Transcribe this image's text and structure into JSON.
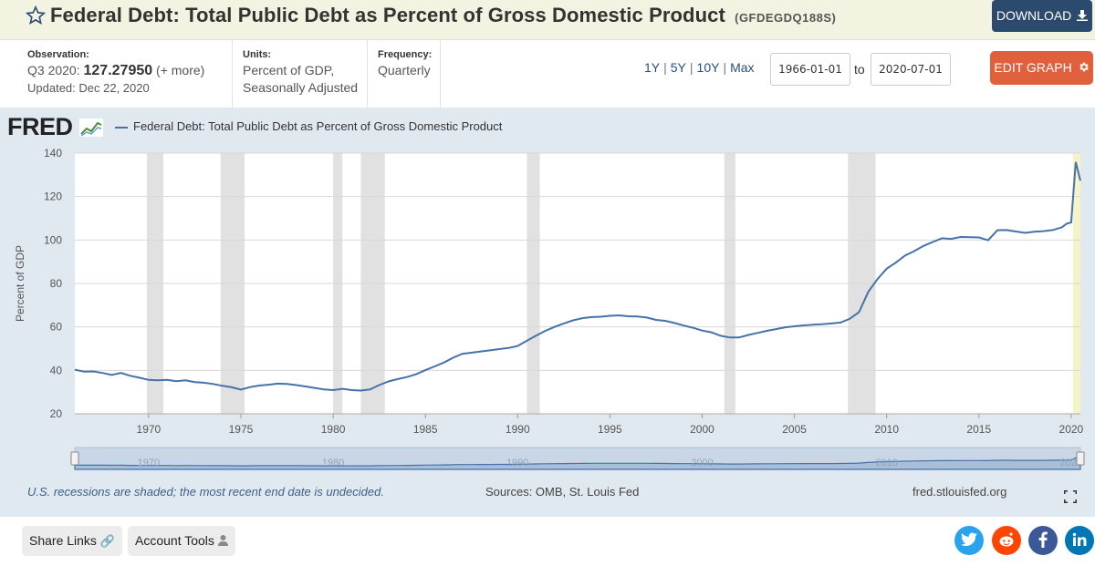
{
  "header": {
    "title": "Federal Debt: Total Public Debt as Percent of Gross Domestic Product",
    "series_id": "(GFDEGDQ188S)",
    "download_label": "DOWNLOAD"
  },
  "meta": {
    "observation_label": "Observation:",
    "observation_period": "Q3 2020:",
    "observation_value": "127.27950",
    "more_label": "(+ more)",
    "updated": "Updated: Dec 22, 2020",
    "units_label": "Units:",
    "units_line1": "Percent of GDP,",
    "units_line2": "Seasonally Adjusted",
    "frequency_label": "Frequency:",
    "frequency_value": "Quarterly"
  },
  "controls": {
    "range_1y": "1Y",
    "range_5y": "5Y",
    "range_10y": "10Y",
    "range_max": "Max",
    "start_date": "1966-01-01",
    "to_label": "to",
    "end_date": "2020-07-01",
    "edit_label": "EDIT GRAPH"
  },
  "graph": {
    "logo": "FRED",
    "legend": "Federal Debt: Total Public Debt as Percent of Gross Domestic Product",
    "footnote": "U.S. recessions are shaded; the most recent end date is undecided.",
    "sources": "Sources: OMB, St. Louis Fed",
    "site": "fred.stlouisfed.org"
  },
  "footer": {
    "share_label": "Share Links",
    "account_label": "Account Tools"
  },
  "colors": {
    "line": "#4572a7",
    "recession": "#e1e1e1",
    "panel": "#e1e9f0",
    "download": "#2c4a6e",
    "edit": "#e0603d"
  },
  "chart_data": {
    "type": "line",
    "title": "",
    "xlabel": "",
    "ylabel": "Percent of GDP",
    "xlim": [
      1966.0,
      2020.5
    ],
    "ylim": [
      20,
      140
    ],
    "yticks": [
      20,
      40,
      60,
      80,
      100,
      120,
      140
    ],
    "xticks": [
      1970,
      1975,
      1980,
      1985,
      1990,
      1995,
      2000,
      2005,
      2010,
      2015,
      2020
    ],
    "navigator_ticks": [
      1970,
      1980,
      1990,
      2000,
      2010,
      2020
    ],
    "grid": true,
    "legend_position": "top-left",
    "recessions": [
      [
        1969.9,
        1970.8
      ],
      [
        1973.9,
        1975.2
      ],
      [
        1980.0,
        1980.5
      ],
      [
        1981.5,
        1982.8
      ],
      [
        1990.5,
        1991.2
      ],
      [
        2001.2,
        2001.8
      ],
      [
        2007.9,
        2009.4
      ],
      [
        2020.1,
        2020.5
      ]
    ],
    "series": [
      {
        "name": "Federal Debt: Total Public Debt as Percent of Gross Domestic Product",
        "points": [
          [
            1966.0,
            40.3
          ],
          [
            1966.5,
            39.4
          ],
          [
            1967.0,
            39.5
          ],
          [
            1967.5,
            38.8
          ],
          [
            1968.0,
            37.9
          ],
          [
            1968.5,
            38.8
          ],
          [
            1969.0,
            37.5
          ],
          [
            1969.5,
            36.6
          ],
          [
            1970.0,
            35.6
          ],
          [
            1970.5,
            35.4
          ],
          [
            1971.0,
            35.6
          ],
          [
            1971.5,
            35.0
          ],
          [
            1972.0,
            35.4
          ],
          [
            1972.5,
            34.6
          ],
          [
            1973.0,
            34.3
          ],
          [
            1973.5,
            33.7
          ],
          [
            1974.0,
            32.9
          ],
          [
            1974.5,
            32.2
          ],
          [
            1975.0,
            31.1
          ],
          [
            1975.5,
            32.3
          ],
          [
            1976.0,
            33.0
          ],
          [
            1976.5,
            33.4
          ],
          [
            1977.0,
            33.9
          ],
          [
            1977.5,
            33.7
          ],
          [
            1978.0,
            33.2
          ],
          [
            1978.5,
            32.6
          ],
          [
            1979.0,
            31.9
          ],
          [
            1979.5,
            31.2
          ],
          [
            1980.0,
            30.9
          ],
          [
            1980.5,
            31.5
          ],
          [
            1981.0,
            30.9
          ],
          [
            1981.5,
            30.7
          ],
          [
            1982.0,
            31.2
          ],
          [
            1982.5,
            33.2
          ],
          [
            1983.0,
            34.9
          ],
          [
            1983.5,
            36.0
          ],
          [
            1984.0,
            36.9
          ],
          [
            1984.5,
            38.2
          ],
          [
            1985.0,
            40.1
          ],
          [
            1985.5,
            41.8
          ],
          [
            1986.0,
            43.6
          ],
          [
            1986.5,
            45.8
          ],
          [
            1987.0,
            47.6
          ],
          [
            1987.5,
            48.1
          ],
          [
            1988.0,
            48.7
          ],
          [
            1988.5,
            49.2
          ],
          [
            1989.0,
            49.8
          ],
          [
            1989.5,
            50.3
          ],
          [
            1990.0,
            51.2
          ],
          [
            1990.5,
            53.6
          ],
          [
            1991.0,
            56.0
          ],
          [
            1991.5,
            58.2
          ],
          [
            1992.0,
            60.0
          ],
          [
            1992.5,
            61.6
          ],
          [
            1993.0,
            63.0
          ],
          [
            1993.5,
            64.0
          ],
          [
            1994.0,
            64.5
          ],
          [
            1994.5,
            64.7
          ],
          [
            1995.0,
            65.1
          ],
          [
            1995.5,
            65.3
          ],
          [
            1996.0,
            64.9
          ],
          [
            1996.5,
            64.8
          ],
          [
            1997.0,
            64.3
          ],
          [
            1997.5,
            63.2
          ],
          [
            1998.0,
            62.8
          ],
          [
            1998.5,
            61.8
          ],
          [
            1999.0,
            60.6
          ],
          [
            1999.5,
            59.6
          ],
          [
            2000.0,
            58.3
          ],
          [
            2000.5,
            57.5
          ],
          [
            2001.0,
            55.9
          ],
          [
            2001.5,
            55.1
          ],
          [
            2002.0,
            55.1
          ],
          [
            2002.5,
            56.3
          ],
          [
            2003.0,
            57.2
          ],
          [
            2003.5,
            58.2
          ],
          [
            2004.0,
            59.0
          ],
          [
            2004.5,
            59.8
          ],
          [
            2005.0,
            60.3
          ],
          [
            2005.5,
            60.7
          ],
          [
            2006.0,
            61.0
          ],
          [
            2006.5,
            61.2
          ],
          [
            2007.0,
            61.6
          ],
          [
            2007.5,
            62.0
          ],
          [
            2008.0,
            63.7
          ],
          [
            2008.5,
            66.8
          ],
          [
            2009.0,
            76.1
          ],
          [
            2009.5,
            82.0
          ],
          [
            2010.0,
            86.8
          ],
          [
            2010.5,
            89.6
          ],
          [
            2011.0,
            92.9
          ],
          [
            2011.5,
            94.9
          ],
          [
            2012.0,
            97.3
          ],
          [
            2012.5,
            99.1
          ],
          [
            2013.0,
            100.8
          ],
          [
            2013.5,
            100.5
          ],
          [
            2014.0,
            101.4
          ],
          [
            2014.5,
            101.3
          ],
          [
            2015.0,
            101.2
          ],
          [
            2015.5,
            99.9
          ],
          [
            2016.0,
            104.5
          ],
          [
            2016.5,
            104.6
          ],
          [
            2017.0,
            103.9
          ],
          [
            2017.5,
            103.3
          ],
          [
            2018.0,
            103.8
          ],
          [
            2018.5,
            104.1
          ],
          [
            2019.0,
            104.6
          ],
          [
            2019.5,
            105.9
          ],
          [
            2019.75,
            107.5
          ],
          [
            2020.0,
            108.1
          ],
          [
            2020.25,
            135.9
          ],
          [
            2020.5,
            127.3
          ]
        ]
      }
    ]
  }
}
